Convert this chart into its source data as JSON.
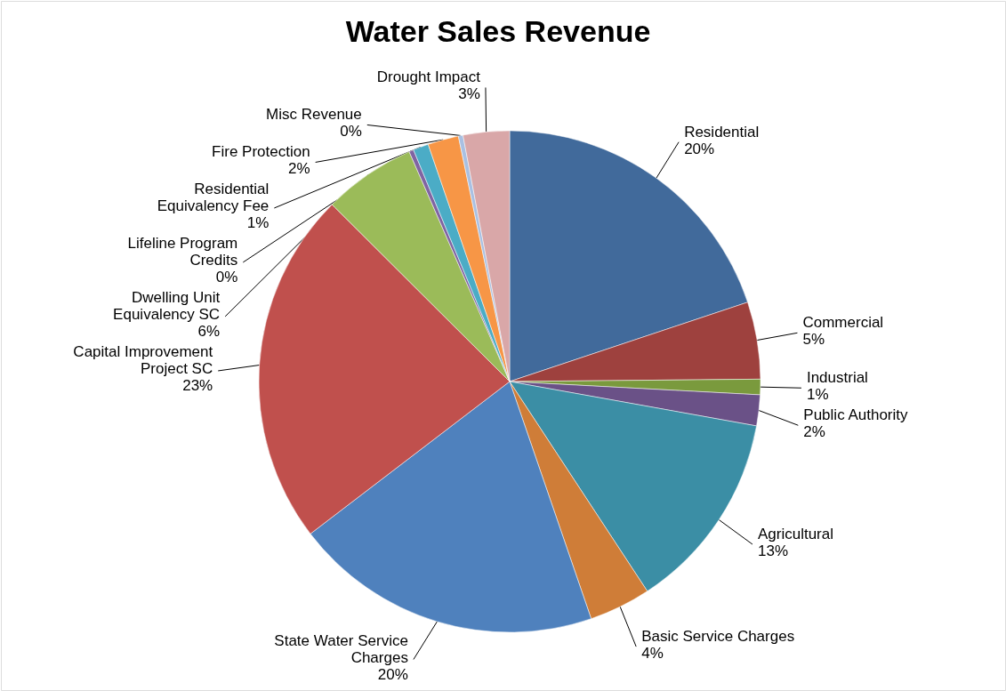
{
  "chart_data": {
    "type": "pie",
    "title": "Water Sales Revenue",
    "categories": [
      "Residential",
      "Commercial",
      "Industrial",
      "Public Authority",
      "Agricultural",
      "Basic Service Charges",
      "State Water Service Charges",
      "Capital Improvement Project SC",
      "Dwelling Unit Equivalency SC",
      "Lifeline Program Credits",
      "Residential Equivalency Fee",
      "Fire Protection",
      "Misc Revenue",
      "Drought Impact"
    ],
    "values": [
      20,
      5,
      1,
      2,
      13,
      4,
      20,
      23,
      6,
      0.3,
      1,
      2,
      0.3,
      3
    ],
    "value_labels": [
      "20%",
      "5%",
      "1%",
      "2%",
      "13%",
      "4%",
      "20%",
      "23%",
      "6%",
      "0%",
      "1%",
      "2%",
      "0%",
      "3%"
    ],
    "colors": [
      "#416a9b",
      "#9e413e",
      "#7a9a3d",
      "#6a5187",
      "#3b8ea5",
      "#cf7d38",
      "#4f81bd",
      "#c0504d",
      "#9bbb59",
      "#8064a2",
      "#4bacc6",
      "#f79646",
      "#a9c0e2",
      "#d9a7a8"
    ]
  }
}
